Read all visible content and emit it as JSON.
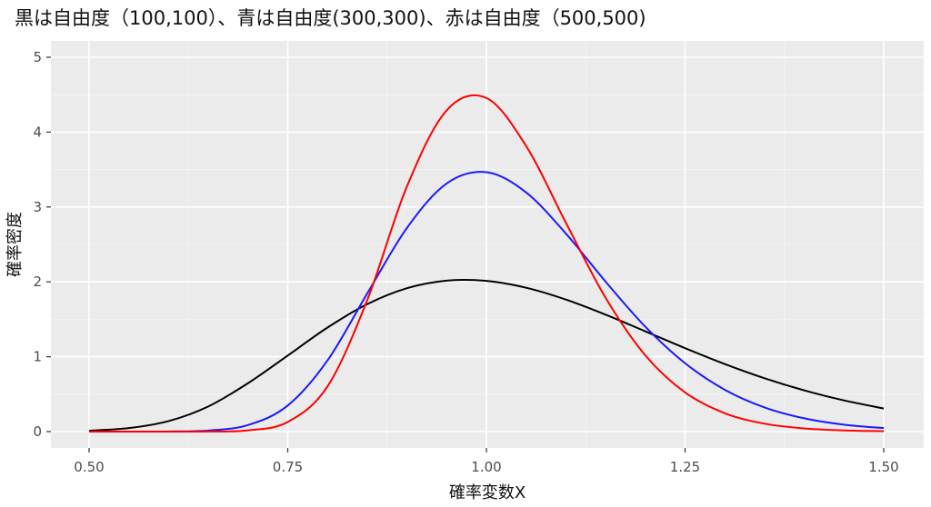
{
  "chart_data": {
    "type": "line",
    "title": "黒は自由度（100,100）、青は自由度(300,300)、赤は自由度（500,500)",
    "xlabel": "確率変数X",
    "ylabel": "確率密度",
    "xlim": [
      0.5,
      1.5
    ],
    "ylim": [
      0,
      5
    ],
    "x_ticks": [
      0.5,
      0.75,
      1.0,
      1.25,
      1.5
    ],
    "x_tick_labels": [
      "0.50",
      "0.75",
      "1.00",
      "1.25",
      "1.50"
    ],
    "y_ticks": [
      0,
      1,
      2,
      3,
      4,
      5
    ],
    "y_tick_labels": [
      "0",
      "1",
      "2",
      "3",
      "4",
      "5"
    ],
    "grid": true,
    "background": "#ebebeb",
    "x": [
      0.5,
      0.55,
      0.6,
      0.65,
      0.7,
      0.75,
      0.8,
      0.85,
      0.9,
      0.95,
      1.0,
      1.05,
      1.1,
      1.15,
      1.2,
      1.25,
      1.3,
      1.35,
      1.4,
      1.45,
      1.5
    ],
    "series": [
      {
        "color": "#000000",
        "values": [
          0.0122,
          0.0468,
          0.1403,
          0.3356,
          0.6461,
          1.0152,
          1.3893,
          1.7018,
          1.9148,
          2.0163,
          2.0128,
          1.9212,
          1.7634,
          1.5619,
          1.3391,
          1.1142,
          0.9023,
          0.7128,
          0.5505,
          0.4163,
          0.3089
        ]
      },
      {
        "color": "#1a1aff",
        "values": [
          0.0,
          0.0,
          0.0015,
          0.0143,
          0.0871,
          0.3479,
          0.9501,
          1.8438,
          2.7199,
          3.3143,
          3.4654,
          3.1939,
          2.6452,
          2.0025,
          1.4005,
          0.9133,
          0.5589,
          0.323,
          0.1773,
          0.0927,
          0.0464
        ]
      },
      {
        "color": "#ff0000",
        "values": [
          0.0,
          0.0,
          0.0,
          0.0011,
          0.0165,
          0.1284,
          0.6029,
          1.7551,
          3.2754,
          4.2911,
          4.4557,
          3.8138,
          2.7894,
          1.7867,
          1.0181,
          0.5231,
          0.2449,
          0.1055,
          0.0422,
          0.0157,
          0.0055
        ]
      }
    ]
  }
}
